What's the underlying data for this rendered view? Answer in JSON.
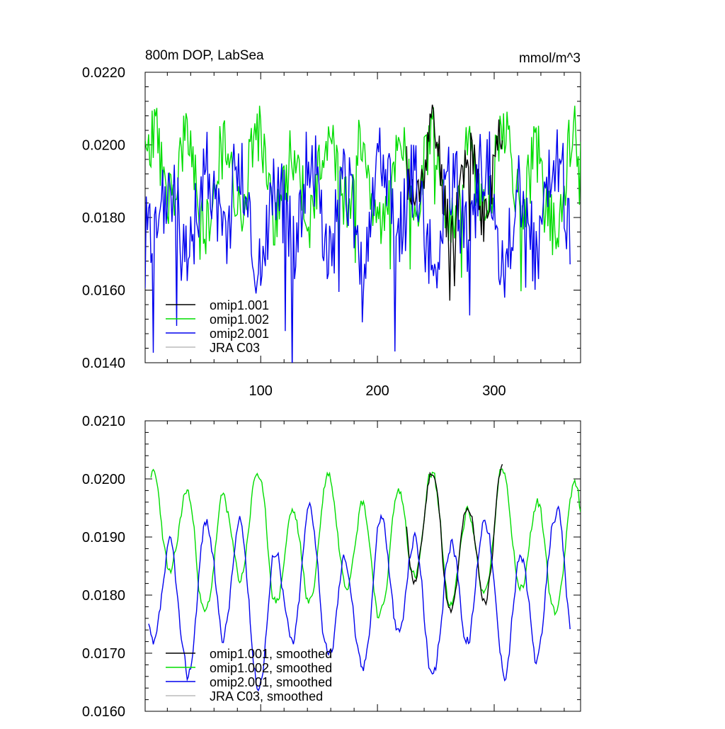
{
  "chart_data": [
    {
      "type": "line",
      "title": "800m DOP, LabSea",
      "units": "mmol/m^3",
      "xlabel": "",
      "ylabel": "",
      "xlim": [
        1,
        374
      ],
      "ylim": [
        0.014,
        0.022
      ],
      "xticks": [
        100,
        200,
        300
      ],
      "xtick_labels": [
        "100",
        "200",
        "300"
      ],
      "yticks": [
        0.014,
        0.016,
        0.018,
        0.02,
        0.022
      ],
      "ytick_labels": [
        "0.0140",
        "0.0160",
        "0.0180",
        "0.0200",
        "0.0220"
      ],
      "legend_position": "bottom-left",
      "series": [
        {
          "name": "omip1.001",
          "color": "#000000",
          "x_start": 225,
          "x_end": 307,
          "mean": 0.0191,
          "amp": 0.0011,
          "noise": 0.0008,
          "seed": 11,
          "phase": 0.0
        },
        {
          "name": "omip1.002",
          "color": "#00dd00",
          "x_start": 1,
          "x_end": 374,
          "mean": 0.0191,
          "amp": 0.001,
          "noise": 0.0009,
          "seed": 23,
          "phase": 0.0
        },
        {
          "name": "omip2.001",
          "color": "#0000ee",
          "x_start": 1,
          "x_end": 365,
          "mean": 0.0182,
          "amp": 0.0011,
          "noise": 0.0012,
          "seed": 37,
          "phase": 3.1
        },
        {
          "name": "JRA C03",
          "color": "#bbbbbb",
          "x_start": 0,
          "x_end": 0,
          "mean": 0.0,
          "amp": 0.0,
          "noise": 0.0,
          "seed": 0,
          "phase": 0.0
        }
      ]
    },
    {
      "type": "line",
      "title": "",
      "units": "",
      "xlabel": "",
      "ylabel": "",
      "xlim": [
        1,
        374
      ],
      "ylim": [
        0.016,
        0.021
      ],
      "xticks": [
        100,
        200,
        300
      ],
      "xtick_labels": [
        "",
        "",
        ""
      ],
      "yticks": [
        0.016,
        0.017,
        0.018,
        0.019,
        0.02,
        0.021
      ],
      "ytick_labels": [
        "0.0160",
        "0.0170",
        "0.0180",
        "0.0190",
        "0.0200",
        "0.0210"
      ],
      "legend_position": "bottom-left",
      "series": [
        {
          "name": "omip1.001, smoothed",
          "color": "#000000",
          "x_start": 225,
          "x_end": 307,
          "mean": 0.0189,
          "amp": 0.001,
          "noise": 0.0004,
          "seed": 11,
          "phase": 0.0
        },
        {
          "name": "omip1.002, smoothed",
          "color": "#00dd00",
          "x_start": 6,
          "x_end": 374,
          "mean": 0.0189,
          "amp": 0.0009,
          "noise": 0.0004,
          "seed": 23,
          "phase": 0.0
        },
        {
          "name": "omip2.001, smoothed",
          "color": "#0000ee",
          "x_start": 4,
          "x_end": 365,
          "mean": 0.018,
          "amp": 0.0011,
          "noise": 0.0005,
          "seed": 37,
          "phase": 3.1
        },
        {
          "name": "JRA C03, smoothed",
          "color": "#bbbbbb",
          "x_start": 0,
          "x_end": 0,
          "mean": 0.0,
          "amp": 0.0,
          "noise": 0.0,
          "seed": 0,
          "phase": 0.0
        }
      ]
    }
  ]
}
